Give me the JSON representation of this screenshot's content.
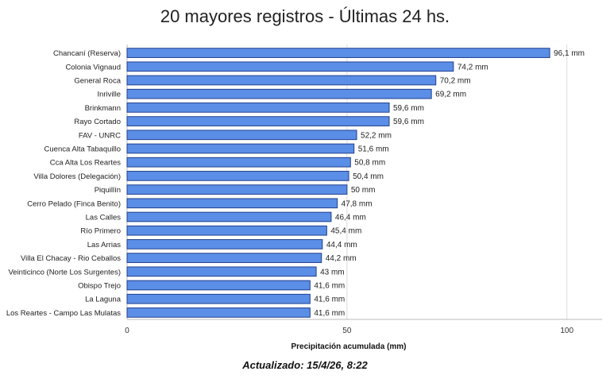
{
  "chart_data": {
    "type": "bar",
    "orientation": "horizontal",
    "title": "20 mayores registros - Últimas 24 hs.",
    "xlabel": "Precipitación acumulada (mm)",
    "ylabel": "",
    "xlim": [
      0,
      108
    ],
    "xticks": [
      0,
      50,
      100
    ],
    "grid": true,
    "bar_color": "#5b8ee6",
    "bar_border_color": "#1f3f8f",
    "categories": [
      "Chancaní (Reserva)",
      "Colonia Vignaud",
      "General Roca",
      "Inriville",
      "Brinkmann",
      "Rayo Cortado",
      "FAV - UNRC",
      "Cuenca Alta Tabaquillo",
      "Cca Alta Los Reartes",
      "Villa Dolores (Delegación)",
      "Piquillín",
      "Cerro Pelado (Finca Benito)",
      "Las Calles",
      "Río Primero",
      "Las Arrias",
      "Villa El Chacay - Rio Ceballos",
      "Veinticinco (Norte Los Surgentes)",
      "Obispo Trejo",
      "La Laguna",
      "Los Reartes - Campo Las Mulatas"
    ],
    "values": [
      96.1,
      74.2,
      70.2,
      69.2,
      59.6,
      59.6,
      52.2,
      51.6,
      50.8,
      50.4,
      50,
      47.8,
      46.4,
      45.4,
      44.4,
      44.2,
      43,
      41.6,
      41.6,
      41.6
    ],
    "value_labels": [
      "96,1 mm",
      "74,2 mm",
      "70,2 mm",
      "69,2 mm",
      "59,6 mm",
      "59,6 mm",
      "52,2 mm",
      "51,6 mm",
      "50,8 mm",
      "50,4 mm",
      "50 mm",
      "47,8 mm",
      "46,4 mm",
      "45,4 mm",
      "44,4 mm",
      "44,2 mm",
      "43 mm",
      "41,6 mm",
      "41,6 mm",
      "41,6 mm"
    ]
  },
  "footer": {
    "updated": "Actualizado: 15/4/26, 8:22"
  }
}
